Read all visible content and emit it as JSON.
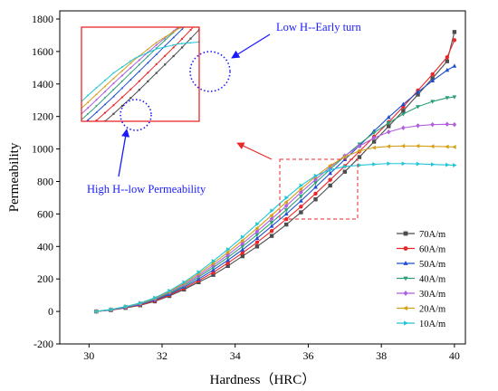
{
  "chart_data": {
    "type": "line",
    "xlabel": "Hardness（HRC）",
    "ylabel": "Permeability",
    "xlim": [
      29.2,
      40.3
    ],
    "ylim": [
      -200,
      1850
    ],
    "xticks": [
      30,
      32,
      34,
      36,
      38,
      40
    ],
    "yticks": [
      -200,
      0,
      200,
      400,
      600,
      800,
      1000,
      1200,
      1400,
      1600,
      1800
    ],
    "grid": false,
    "legend_position": "bottom-right",
    "annotations": [
      "Low H--Early turn",
      "High H--low Permeability"
    ],
    "series": [
      {
        "name": "70A/m",
        "color": "#4d4d4d",
        "marker": "square",
        "points": [
          [
            30.2,
            0
          ],
          [
            30.6,
            8
          ],
          [
            31.0,
            22
          ],
          [
            31.4,
            38
          ],
          [
            31.8,
            62
          ],
          [
            32.2,
            95
          ],
          [
            32.6,
            135
          ],
          [
            33.0,
            180
          ],
          [
            33.4,
            225
          ],
          [
            33.8,
            280
          ],
          [
            34.2,
            340
          ],
          [
            34.6,
            400
          ],
          [
            35.0,
            465
          ],
          [
            35.4,
            535
          ],
          [
            35.8,
            610
          ],
          [
            36.2,
            690
          ],
          [
            36.6,
            775
          ],
          [
            37.0,
            860
          ],
          [
            37.4,
            950
          ],
          [
            37.8,
            1045
          ],
          [
            38.2,
            1140
          ],
          [
            38.6,
            1235
          ],
          [
            39.0,
            1335
          ],
          [
            39.4,
            1435
          ],
          [
            39.8,
            1540
          ],
          [
            40.0,
            1720
          ]
        ]
      },
      {
        "name": "60A/m",
        "color": "#e8282a",
        "marker": "circle",
        "points": [
          [
            30.2,
            0
          ],
          [
            30.6,
            9
          ],
          [
            31.0,
            23
          ],
          [
            31.4,
            40
          ],
          [
            31.8,
            65
          ],
          [
            32.2,
            100
          ],
          [
            32.6,
            142
          ],
          [
            33.0,
            190
          ],
          [
            33.4,
            240
          ],
          [
            33.8,
            298
          ],
          [
            34.2,
            360
          ],
          [
            34.6,
            425
          ],
          [
            35.0,
            495
          ],
          [
            35.4,
            568
          ],
          [
            35.8,
            645
          ],
          [
            36.2,
            725
          ],
          [
            36.6,
            810
          ],
          [
            37.0,
            895
          ],
          [
            37.4,
            985
          ],
          [
            37.8,
            1075
          ],
          [
            38.2,
            1165
          ],
          [
            38.6,
            1260
          ],
          [
            39.0,
            1360
          ],
          [
            39.4,
            1460
          ],
          [
            39.8,
            1565
          ],
          [
            40.0,
            1670
          ]
        ]
      },
      {
        "name": "50A/m",
        "color": "#1f4fcf",
        "marker": "triangle-up",
        "points": [
          [
            30.2,
            0
          ],
          [
            30.6,
            10
          ],
          [
            31.0,
            25
          ],
          [
            31.4,
            43
          ],
          [
            31.8,
            70
          ],
          [
            32.2,
            106
          ],
          [
            32.6,
            150
          ],
          [
            33.0,
            200
          ],
          [
            33.4,
            255
          ],
          [
            33.8,
            315
          ],
          [
            34.2,
            380
          ],
          [
            34.6,
            450
          ],
          [
            35.0,
            525
          ],
          [
            35.4,
            600
          ],
          [
            35.8,
            680
          ],
          [
            36.2,
            765
          ],
          [
            36.6,
            850
          ],
          [
            37.0,
            935
          ],
          [
            37.4,
            1020
          ],
          [
            37.8,
            1110
          ],
          [
            38.2,
            1195
          ],
          [
            38.6,
            1275
          ],
          [
            39.0,
            1350
          ],
          [
            39.4,
            1420
          ],
          [
            39.8,
            1485
          ],
          [
            40.0,
            1510
          ]
        ]
      },
      {
        "name": "40A/m",
        "color": "#2e9e7a",
        "marker": "triangle-down",
        "points": [
          [
            30.2,
            0
          ],
          [
            30.6,
            11
          ],
          [
            31.0,
            27
          ],
          [
            31.4,
            46
          ],
          [
            31.8,
            74
          ],
          [
            32.2,
            112
          ],
          [
            32.6,
            158
          ],
          [
            33.0,
            212
          ],
          [
            33.4,
            270
          ],
          [
            33.8,
            333
          ],
          [
            34.2,
            400
          ],
          [
            34.6,
            472
          ],
          [
            35.0,
            548
          ],
          [
            35.4,
            625
          ],
          [
            35.8,
            708
          ],
          [
            36.2,
            792
          ],
          [
            36.6,
            875
          ],
          [
            37.0,
            955
          ],
          [
            37.4,
            1030
          ],
          [
            37.8,
            1100
          ],
          [
            38.2,
            1160
          ],
          [
            38.6,
            1215
          ],
          [
            39.0,
            1260
          ],
          [
            39.4,
            1292
          ],
          [
            39.8,
            1315
          ],
          [
            40.0,
            1320
          ]
        ]
      },
      {
        "name": "30A/m",
        "color": "#b05fe0",
        "marker": "diamond",
        "points": [
          [
            30.2,
            0
          ],
          [
            30.6,
            11
          ],
          [
            31.0,
            28
          ],
          [
            31.4,
            48
          ],
          [
            31.8,
            78
          ],
          [
            32.2,
            118
          ],
          [
            32.6,
            166
          ],
          [
            33.0,
            222
          ],
          [
            33.4,
            283
          ],
          [
            33.8,
            348
          ],
          [
            34.2,
            418
          ],
          [
            34.6,
            492
          ],
          [
            35.0,
            570
          ],
          [
            35.4,
            650
          ],
          [
            35.8,
            733
          ],
          [
            36.2,
            812
          ],
          [
            36.6,
            888
          ],
          [
            37.0,
            958
          ],
          [
            37.4,
            1018
          ],
          [
            37.8,
            1068
          ],
          [
            38.2,
            1105
          ],
          [
            38.6,
            1130
          ],
          [
            39.0,
            1143
          ],
          [
            39.4,
            1150
          ],
          [
            39.8,
            1152
          ],
          [
            40.0,
            1150
          ]
        ]
      },
      {
        "name": "20A/m",
        "color": "#d4a017",
        "marker": "triangle-left",
        "points": [
          [
            30.2,
            0
          ],
          [
            30.6,
            12
          ],
          [
            31.0,
            29
          ],
          [
            31.4,
            50
          ],
          [
            31.8,
            81
          ],
          [
            32.2,
            122
          ],
          [
            32.6,
            173
          ],
          [
            33.0,
            232
          ],
          [
            33.4,
            296
          ],
          [
            33.8,
            364
          ],
          [
            34.2,
            436
          ],
          [
            34.6,
            512
          ],
          [
            35.0,
            592
          ],
          [
            35.4,
            673
          ],
          [
            35.8,
            753
          ],
          [
            36.2,
            830
          ],
          [
            36.6,
            898
          ],
          [
            37.0,
            952
          ],
          [
            37.4,
            988
          ],
          [
            37.8,
            1008
          ],
          [
            38.2,
            1016
          ],
          [
            38.6,
            1018
          ],
          [
            39.0,
            1018
          ],
          [
            39.4,
            1016
          ],
          [
            39.8,
            1014
          ],
          [
            40.0,
            1012
          ]
        ]
      },
      {
        "name": "10A/m",
        "color": "#22c5d6",
        "marker": "triangle-right",
        "points": [
          [
            30.2,
            0
          ],
          [
            30.6,
            12
          ],
          [
            31.0,
            30
          ],
          [
            31.4,
            52
          ],
          [
            31.8,
            84
          ],
          [
            32.2,
            127
          ],
          [
            32.6,
            180
          ],
          [
            33.0,
            242
          ],
          [
            33.4,
            310
          ],
          [
            33.8,
            382
          ],
          [
            34.2,
            458
          ],
          [
            34.6,
            538
          ],
          [
            35.0,
            620
          ],
          [
            35.4,
            700
          ],
          [
            35.8,
            775
          ],
          [
            36.2,
            835
          ],
          [
            36.6,
            872
          ],
          [
            37.0,
            892
          ],
          [
            37.4,
            900
          ],
          [
            37.8,
            906
          ],
          [
            38.2,
            910
          ],
          [
            38.6,
            910
          ],
          [
            39.0,
            908
          ],
          [
            39.4,
            905
          ],
          [
            39.8,
            902
          ],
          [
            40.0,
            900
          ]
        ]
      }
    ]
  }
}
